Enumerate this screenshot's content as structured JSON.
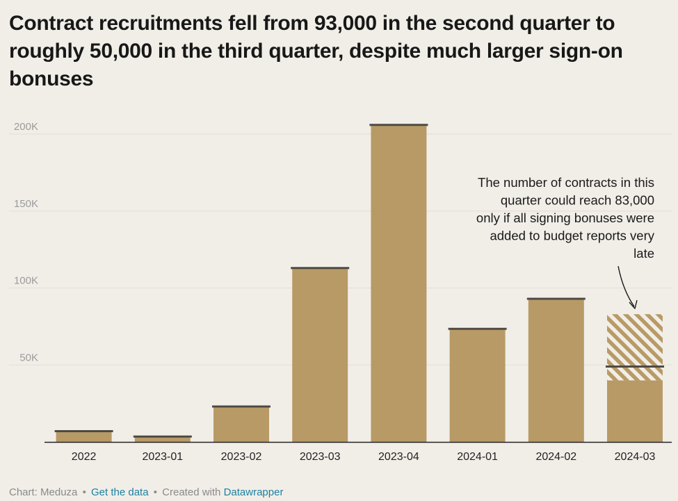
{
  "title": "Contract recruitments fell from 93,000 in the second quarter to roughly 50,000 in the third quarter, despite much larger sign-on bonuses",
  "chart_data": {
    "type": "bar",
    "categories": [
      "2022",
      "2023-01",
      "2023-02",
      "2023-03",
      "2023-04",
      "2024-01",
      "2024-02",
      "2024-03"
    ],
    "series": [
      {
        "values": [
          7000,
          3500,
          23000,
          113000,
          206000,
          73500,
          93000,
          49000
        ]
      }
    ],
    "potential": {
      "category": "2024-03",
      "upper": 83000,
      "lower": 40000
    },
    "y_ticks": [
      {
        "value": 50000,
        "label": "50K"
      },
      {
        "value": 100000,
        "label": "100K"
      },
      {
        "value": 150000,
        "label": "150K"
      },
      {
        "value": 200000,
        "label": "200K"
      }
    ],
    "ylim": [
      0,
      215000
    ],
    "grid": true,
    "annotation": {
      "lines": [
        "The number of contracts in this",
        "quarter could reach 83,000",
        "only if all signing bonuses were",
        "added to budget reports very",
        "late"
      ]
    },
    "colors": {
      "bar": "#b89a66",
      "bar_top": "#4e4a42",
      "grid": "#e2ded6",
      "axis": "#222222",
      "tick_label": "#9b9b9b",
      "category_label": "#222222",
      "hatch": "#f1eee8"
    }
  },
  "footer": {
    "source": "Chart: Meduza",
    "separator": "•",
    "get_data": "Get the data",
    "created_with": "Created with",
    "tool": "Datawrapper"
  }
}
